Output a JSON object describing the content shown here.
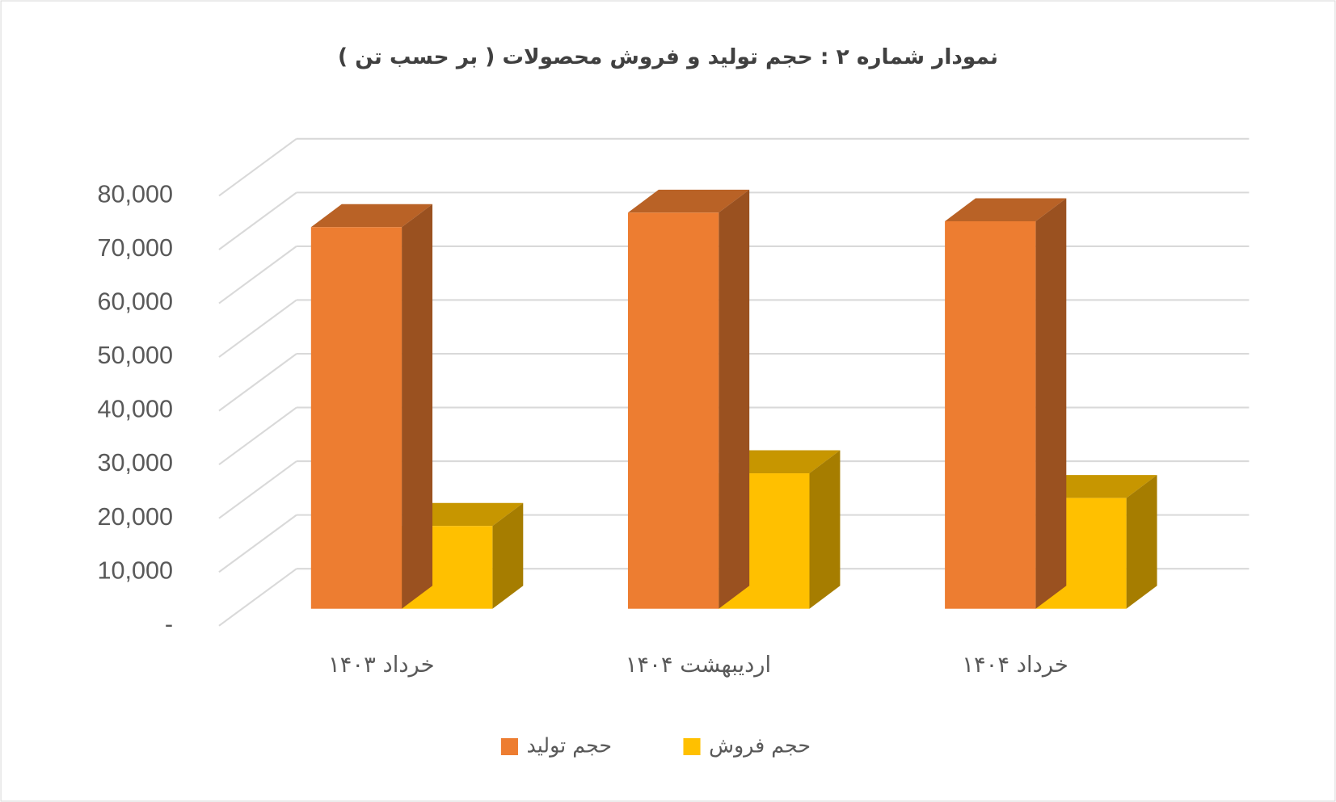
{
  "chart_data": {
    "type": "bar3d",
    "title": "نمودار شماره ۲ : حجم  تولید و فروش محصولات ( بر حسب تن )",
    "categories": [
      "خرداد ۱۴۰۳",
      "اردیبهشت ۱۴۰۴",
      "خرداد ۱۴۰۴"
    ],
    "series": [
      {
        "name": "حجم تولید",
        "color": "#ed7d31",
        "values": [
          71000,
          73700,
          72100
        ]
      },
      {
        "name": "حجم فروش",
        "color": "#ffc000",
        "values": [
          15400,
          25200,
          20600
        ]
      }
    ],
    "ylim": [
      0,
      80000
    ],
    "yticks": [
      {
        "value": 0,
        "label": "-"
      },
      {
        "value": 10000,
        "label": "10,000"
      },
      {
        "value": 20000,
        "label": "20,000"
      },
      {
        "value": 30000,
        "label": "30,000"
      },
      {
        "value": 40000,
        "label": "40,000"
      },
      {
        "value": 50000,
        "label": "50,000"
      },
      {
        "value": 60000,
        "label": "60,000"
      },
      {
        "value": 70000,
        "label": "70,000"
      },
      {
        "value": 80000,
        "label": "80,000"
      }
    ],
    "grid": true,
    "legend": "bottom"
  }
}
